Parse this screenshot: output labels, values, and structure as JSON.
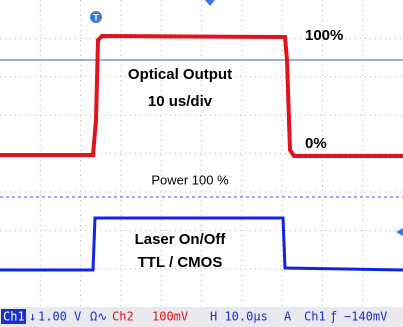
{
  "screen": {
    "labels": {
      "top_level": "100%",
      "signal_name": "Optical Output",
      "timebase": "10 us/div",
      "bottom_level": "0%",
      "power": "Power 100 %",
      "trigger_name": "Laser On/Off",
      "logic": "TTL / CMOS"
    },
    "status_bar": {
      "ch1": "Ch1",
      "ch1_scale": "1.00 V",
      "ch2": "Ch2",
      "ch2_scale": "100mV",
      "horizontal": "H 10.0µs",
      "mode": "A",
      "trigger_source": "Ch1",
      "trigger_level": "−140mV"
    }
  }
}
